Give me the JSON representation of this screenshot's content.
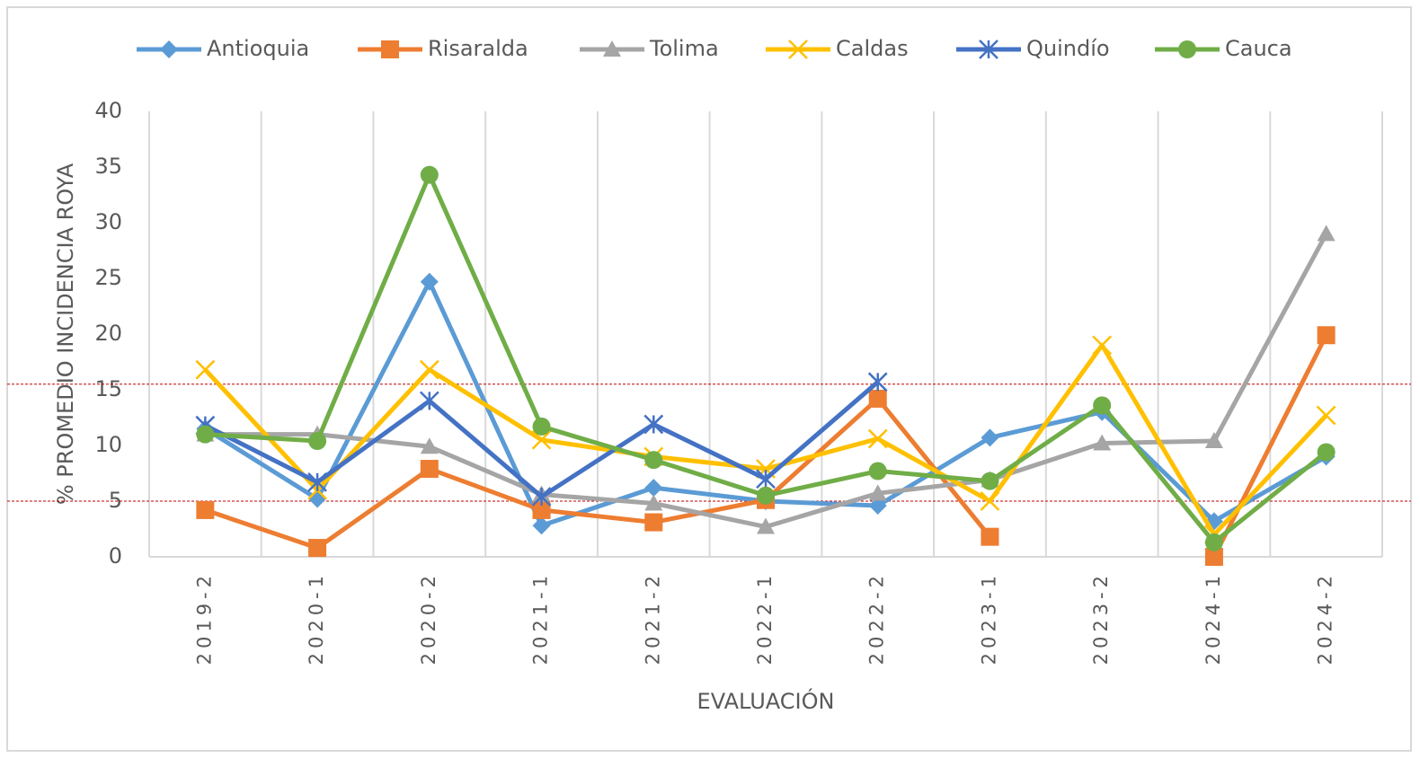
{
  "chart_data": {
    "type": "line",
    "x_label": "EVALUACIÓN",
    "y_label": "% PROMEDIO INCIDENCIA ROYA",
    "categories": [
      "2019-2",
      "2020-1",
      "2020-2",
      "2021-1",
      "2021-2",
      "2022-1",
      "2022-2",
      "2023-1",
      "2023-2",
      "2024-1",
      "2024-2"
    ],
    "ylim": [
      0,
      40
    ],
    "yticks": [
      0,
      5,
      10,
      15,
      20,
      25,
      30,
      35,
      40
    ],
    "reference_lines": [
      5,
      15.5
    ],
    "legend": "top",
    "series": [
      {
        "name": "Antioquia",
        "color": "#5b9bd5",
        "marker": "diamond",
        "values": [
          11.5,
          5.2,
          24.7,
          2.8,
          6.2,
          5.0,
          4.6,
          10.7,
          13.0,
          3.2,
          9.0
        ]
      },
      {
        "name": "Risaralda",
        "color": "#ed7d31",
        "marker": "square",
        "values": [
          4.2,
          0.8,
          7.9,
          4.2,
          3.1,
          5.1,
          14.2,
          1.8,
          null,
          0,
          19.9
        ]
      },
      {
        "name": "Tolima",
        "color": "#a5a5a5",
        "marker": "triangle",
        "values": [
          11.0,
          11.0,
          9.9,
          5.6,
          4.8,
          2.7,
          5.7,
          6.9,
          10.2,
          10.4,
          29.0
        ]
      },
      {
        "name": "Caldas",
        "color": "#ffc000",
        "marker": "x",
        "values": [
          16.8,
          6.0,
          16.8,
          10.5,
          9.0,
          7.9,
          10.6,
          5.0,
          19.0,
          2.0,
          12.7
        ]
      },
      {
        "name": "Quindío",
        "color": "#4472c4",
        "marker": "star",
        "values": [
          11.8,
          6.7,
          14.0,
          5.4,
          11.9,
          7.0,
          15.7,
          null,
          null,
          null,
          null
        ]
      },
      {
        "name": "Cauca",
        "color": "#70ad47",
        "marker": "circle",
        "values": [
          11.0,
          10.4,
          34.3,
          11.7,
          8.7,
          5.5,
          7.7,
          6.8,
          13.6,
          1.3,
          9.4
        ]
      }
    ]
  }
}
